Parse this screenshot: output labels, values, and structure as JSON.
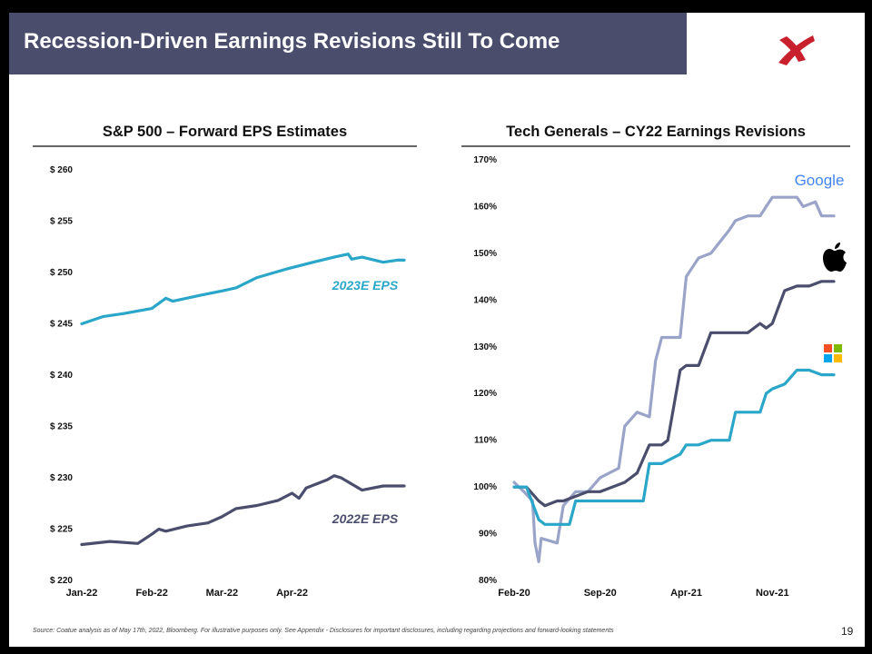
{
  "slide": {
    "title": "Recession-Driven Earnings Revisions Still To Come",
    "logo": "coatue-x-logo",
    "source_note": "Source: Coatue analysis as of May 17th, 2022, Bloomberg. For illustrative purposes only. See Appendix - Disclosures for important disclosures, including regarding projections and forward-looking statements",
    "page_number": "19",
    "colors": {
      "title_bar": "#4a4e6c",
      "logo": "#c8202c"
    }
  },
  "chart_data": [
    {
      "type": "line",
      "title": "S&P 500 – Forward EPS Estimates",
      "xlabel": "",
      "ylabel": "",
      "x_ticks": [
        "Jan-22",
        "Feb-22",
        "Mar-22",
        "Apr-22"
      ],
      "x_range": [
        0,
        4.6
      ],
      "y_ticks": [
        "$ 220",
        "$ 225",
        "$ 230",
        "$ 235",
        "$ 240",
        "$ 245",
        "$ 250",
        "$ 255",
        "$ 260"
      ],
      "ylim": [
        220,
        260
      ],
      "series": [
        {
          "name": "2023E EPS",
          "color": "#2aa6c9",
          "x": [
            0.0,
            0.3,
            0.6,
            1.0,
            1.2,
            1.3,
            1.7,
            2.0,
            2.2,
            2.5,
            2.9,
            3.3,
            3.6,
            3.8,
            3.85,
            4.0,
            4.3,
            4.5,
            4.6
          ],
          "y": [
            245,
            245.7,
            246.0,
            246.5,
            247.5,
            247.2,
            247.8,
            248.2,
            248.5,
            249.5,
            250.3,
            251.0,
            251.5,
            251.8,
            251.3,
            251.5,
            251.0,
            251.2,
            251.2
          ]
        },
        {
          "name": "2022E EPS",
          "color": "#4a4e6c",
          "x": [
            0.0,
            0.4,
            0.8,
            1.0,
            1.1,
            1.2,
            1.5,
            1.8,
            2.0,
            2.2,
            2.5,
            2.8,
            3.0,
            3.1,
            3.2,
            3.5,
            3.6,
            3.7,
            4.0,
            4.3,
            4.5,
            4.6
          ],
          "y": [
            223.5,
            223.8,
            223.6,
            224.5,
            225.0,
            224.8,
            225.3,
            225.6,
            226.2,
            227.0,
            227.3,
            227.8,
            228.5,
            228.0,
            229.0,
            229.8,
            230.2,
            230.0,
            228.8,
            229.2,
            229.2,
            229.2
          ]
        }
      ]
    },
    {
      "type": "line",
      "title": "Tech Generals – CY22 Earnings Revisions",
      "xlabel": "",
      "ylabel": "",
      "x_ticks": [
        "Feb-20",
        "Sep-20",
        "Apr-21",
        "Nov-21"
      ],
      "x_range": [
        0,
        26
      ],
      "y_ticks": [
        "80%",
        "90%",
        "100%",
        "110%",
        "120%",
        "130%",
        "140%",
        "150%",
        "160%",
        "170%"
      ],
      "ylim": [
        80,
        170
      ],
      "series": [
        {
          "name": "Google",
          "icon": "google-logo",
          "color": "#9aa4c8",
          "x": [
            0,
            0.8,
            1.5,
            1.7,
            2.0,
            2.2,
            3.5,
            4.0,
            5.0,
            6.0,
            7.0,
            8.5,
            9.0,
            10.0,
            11.0,
            11.5,
            12.0,
            13.5,
            14.0,
            15.0,
            16.0,
            17.5,
            18.0,
            19.0,
            20.0,
            20.5,
            21.0,
            23.0,
            23.5,
            24.5,
            25.0,
            25.5,
            26.0
          ],
          "y": [
            101,
            99,
            97,
            88,
            84,
            89,
            88,
            96,
            99,
            99,
            102,
            104,
            113,
            116,
            115,
            127,
            132,
            132,
            145,
            149,
            150,
            155,
            157,
            158,
            158,
            160,
            162,
            162,
            160,
            161,
            158,
            158,
            158
          ]
        },
        {
          "name": "Apple",
          "icon": "apple-logo",
          "color": "#4a4e6c",
          "x": [
            0,
            1.0,
            2.0,
            2.5,
            3.5,
            4.0,
            5.0,
            6.0,
            7.0,
            8.0,
            9.0,
            10.0,
            11.0,
            12.0,
            12.5,
            13.5,
            14.0,
            15.0,
            16.0,
            17.0,
            19.0,
            20.0,
            20.5,
            21.0,
            22.0,
            23.0,
            24.0,
            25.0,
            26.0
          ],
          "y": [
            100,
            100,
            97,
            96,
            97,
            97,
            98,
            99,
            99,
            100,
            101,
            103,
            109,
            109,
            110,
            125,
            126,
            126,
            133,
            133,
            133,
            135,
            134,
            135,
            142,
            143,
            143,
            144,
            144
          ]
        },
        {
          "name": "Microsoft",
          "icon": "microsoft-logo",
          "color": "#2aa6c9",
          "x": [
            0,
            1.0,
            2.0,
            2.5,
            3.5,
            4.5,
            5.0,
            6.0,
            7.0,
            8.0,
            9.0,
            10.5,
            11.0,
            12.0,
            13.5,
            14.0,
            15.0,
            16.0,
            17.5,
            18.0,
            19.0,
            20.0,
            20.5,
            21.0,
            22.0,
            23.0,
            24.0,
            25.0,
            26.0
          ],
          "y": [
            100,
            100,
            93,
            92,
            92,
            92,
            97,
            97,
            97,
            97,
            97,
            97,
            105,
            105,
            107,
            109,
            109,
            110,
            110,
            116,
            116,
            116,
            120,
            121,
            122,
            125,
            125,
            124,
            124
          ]
        }
      ]
    }
  ],
  "labels": {
    "eps_2023": "2023E EPS",
    "eps_2022": "2022E EPS",
    "google_wordmark": "Google"
  }
}
